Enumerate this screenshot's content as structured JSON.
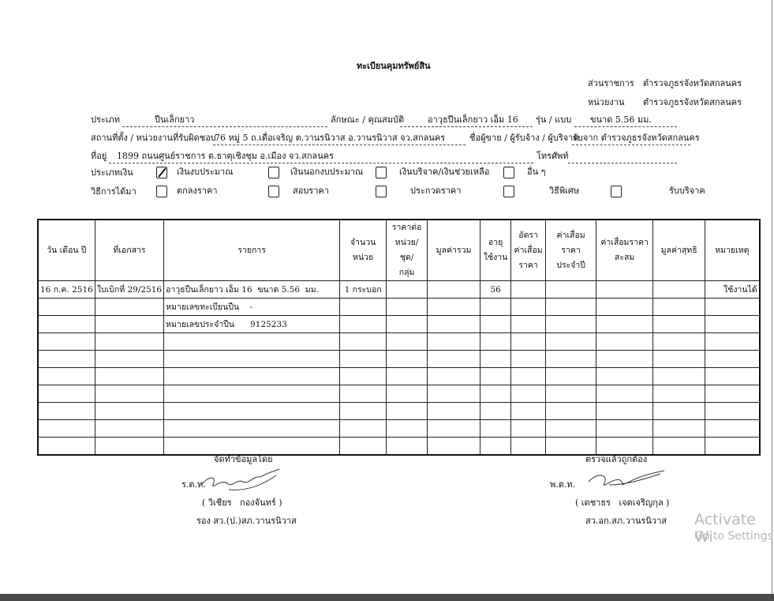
{
  "title": "ทะเบียนคุมทรัพย์สิน",
  "agency": {
    "dept_label": "ส่วนราชการ",
    "dept": "ตำรวจภูธรจังหวัดสกลนคร",
    "unit_label": "หน่วยงาน",
    "unit": "ตำรวจภูธรจังหวัดสกลนคร"
  },
  "fields": {
    "type_label": "ประเภท",
    "type": "ปืนเล็กยาว",
    "property_label": "ลักษณะ / คุณสมบัติ",
    "property": "อาวุธปืนเล็กยาว เอ็ม 16",
    "model_label": "รุ่น / แบบ",
    "model": "ขนาด 5.56 มม.",
    "location_label": "สถานที่ตั้ง / หน่วยงานที่รับผิดชอบ",
    "location": "76 หมู่ 5 ถ.เดื่อเจริญ ต.วานรนิวาส อ.วานรนิวาส จว.สกลนคร",
    "seller_label": "ชื่อผู้ขาย / ผู้รับจ้าง / ผู้บริจาค",
    "seller": "รับจาก ตำรวจภูธรจังหวัดสกลนคร",
    "address_label": "ที่อยู่",
    "address": "1899 ถนนศูนย์ราชการ ต.ธาตุเชิงชุม อ.เมือง จว.สกลนคร",
    "phone_label": "โทรศัพท์"
  },
  "money_type": {
    "label": "ประเภทเงิน",
    "options": [
      {
        "text": "เงินงบประมาณ",
        "checked": true
      },
      {
        "text": "เงินนอกงบประมาณ",
        "checked": false
      },
      {
        "text": "เงินบริจาค/เงินช่วยเหลือ",
        "checked": false
      },
      {
        "text": "อื่น ๆ",
        "checked": false
      }
    ]
  },
  "acquisition": {
    "label": "วิธีการได้มา",
    "options": [
      {
        "text": "ตกลงราคา",
        "checked": false
      },
      {
        "text": "สอบราคา",
        "checked": false
      },
      {
        "text": "ประกวดราคา",
        "checked": false
      },
      {
        "text": "วิธีพิเศษ",
        "checked": false
      },
      {
        "text": "รับบริจาค",
        "checked": false
      }
    ]
  },
  "table": {
    "headers": [
      "วัน เดือน ปี",
      "ที่เอกสาร",
      "รายการ",
      "จำนวน\nหน่วย",
      "ราคาต่อ\nหน่วย/ชุด/\nกลุ่ม",
      "มูลค่ารวม",
      "อายุ\nใช้งาน",
      "อัตรา\nค่าเสื่อม\nราคา",
      "ค่าเสื่อมราคา\nประจำปี",
      "ค่าเสื่อมราคา\nสะสม",
      "มูลค่าสุทธิ",
      "หมายเหตุ"
    ],
    "rows": [
      {
        "0": "16 ก.ค. 2516",
        "1": "ใบเบิกที่ 29/2516",
        "2": "อาวุธปืนเล็กยาว เอ็ม 16  ขนาด 5.56  มม.",
        "3": "1 กระบอก",
        "6": "56",
        "11": "ใช้งานได้"
      },
      {
        "2": "หมายเลขทะเบียนปืน    -"
      },
      {
        "2": "หมายเลขประจำปืน      9125233"
      }
    ]
  },
  "prepared_by": {
    "heading": "จัดทำข้อมูลโดย",
    "rank": "ร.ต.ท.",
    "name": "( วิเชียร   กองจันทร์ )",
    "position": "รอง สว.(ป.)สภ.วานรนิวาส"
  },
  "verified_by": {
    "heading": "ตรวจแล้วถูกต้อง",
    "rank": "พ.ต.ท.",
    "name": "( เดชาธร   เจตเจริญกุล )",
    "position": "สว.อก.สภ.วานรนิวาส"
  },
  "watermark": {
    "line1": "Activate Wi",
    "line2": "Go to Settings"
  }
}
